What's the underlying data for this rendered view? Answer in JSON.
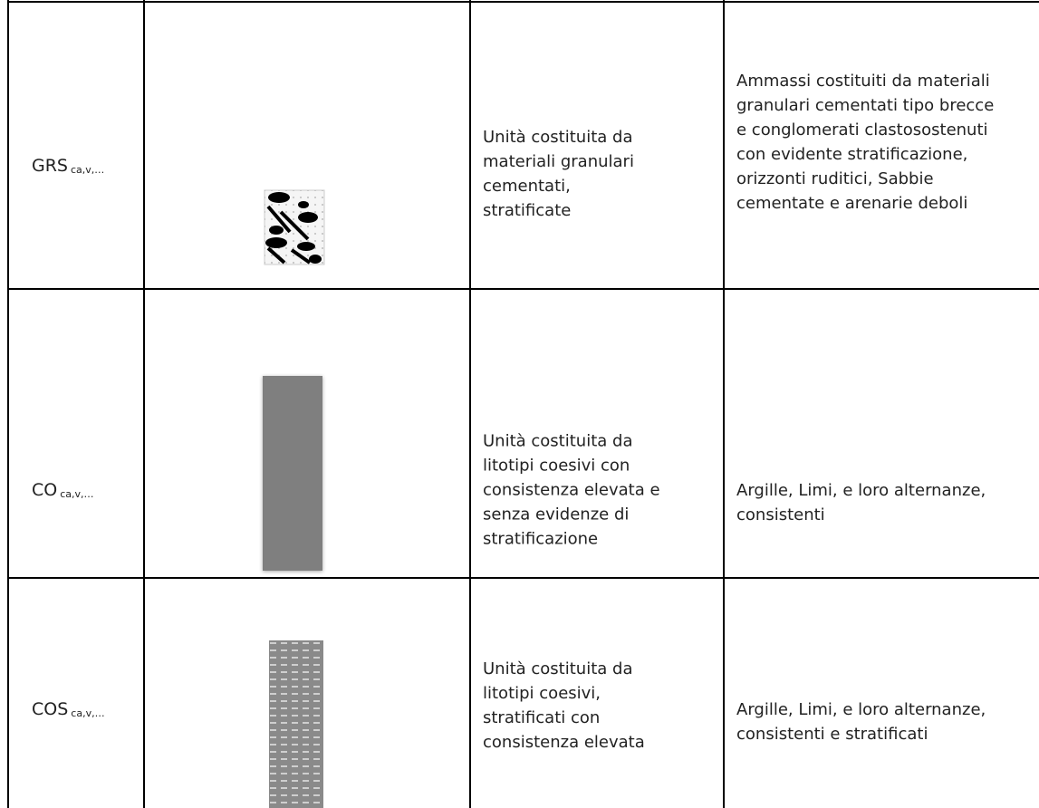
{
  "rows": [
    {
      "code": "GRS",
      "subscript": "ca,v,…",
      "unit": [
        "Unità costituita da",
        "materiali granulari",
        "cementati,",
        "stratificate"
      ],
      "description": [
        "Ammassi costituiti da materiali",
        "granulari cementati tipo brecce",
        "e conglomerati clastosostenuti",
        "con evidente stratificazione,",
        "orizzonti ruditici, Sabbie",
        "cementate e arenarie deboli"
      ]
    },
    {
      "code": "CO",
      "subscript": "ca,v,…",
      "unit": [
        "Unità costituita da",
        "litotipi coesivi con",
        "consistenza elevata e",
        "senza evidenze di",
        "stratificazione"
      ],
      "description": [
        "Argille, Limi, e loro alternanze,",
        "consistenti"
      ]
    },
    {
      "code": "COS",
      "subscript": "ca,v,…",
      "unit": [
        "Unità costituita da",
        "litotipi coesivi,",
        "stratificati con",
        "consistenza elevata"
      ],
      "description": [
        "Argille, Limi, e loro alternanze,",
        "consistenti e stratificati"
      ]
    }
  ]
}
